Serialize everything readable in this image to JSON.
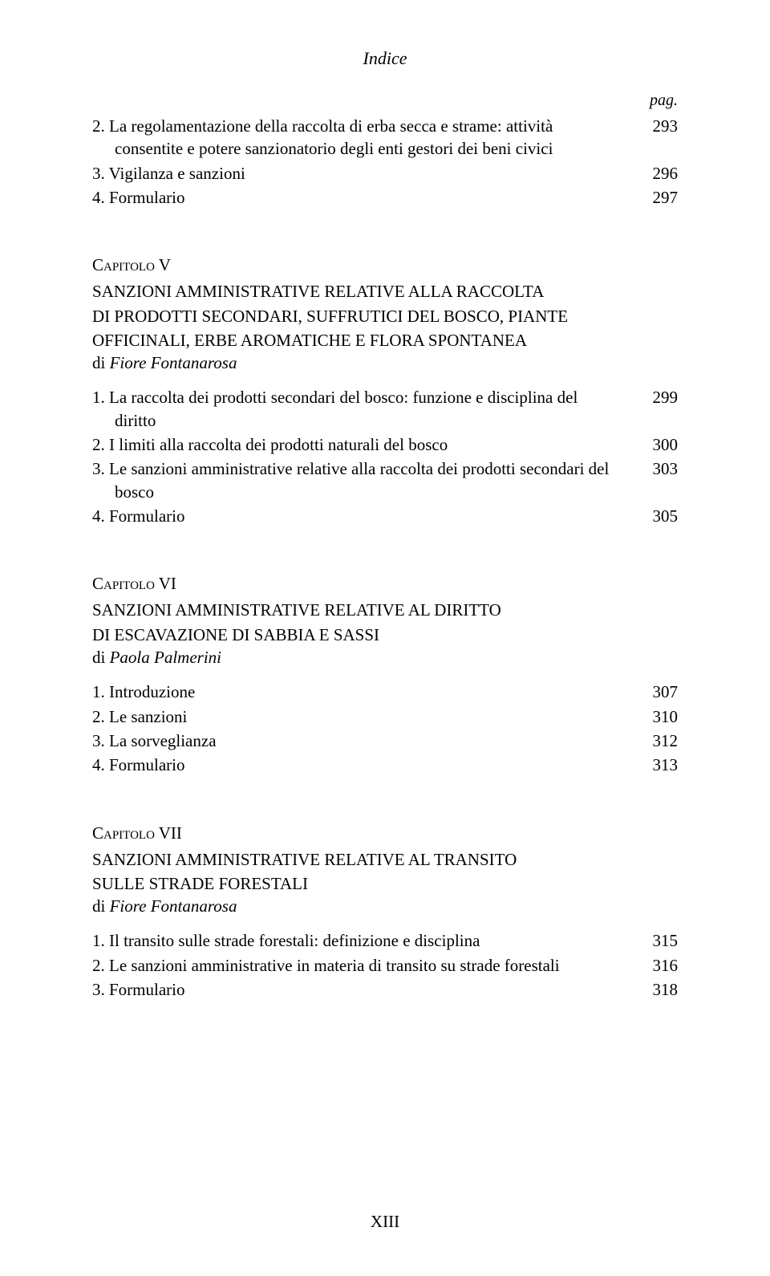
{
  "header": {
    "title": "Indice",
    "pagLabel": "pag."
  },
  "topRows": [
    {
      "text": "2. La regolamentazione della raccolta di erba secca e strame: attività consentite e potere sanzionatorio degli enti gestori dei beni civici",
      "page": "293"
    },
    {
      "text": "3. Vigilanza e sanzioni",
      "page": "296"
    },
    {
      "text": "4. Formulario",
      "page": "297"
    }
  ],
  "chapters": [
    {
      "label": "Capitolo V",
      "titleLines": [
        "SANZIONI AMMINISTRATIVE RELATIVE ALLA RACCOLTA",
        "DI PRODOTTI SECONDARI, SUFFRUTICI DEL BOSCO, PIANTE",
        "OFFICINALI, ERBE AROMATICHE E FLORA SPONTANEA"
      ],
      "authorPrefix": "di ",
      "author": "Fiore Fontanarosa",
      "rows": [
        {
          "text": "1. La raccolta dei prodotti secondari del bosco: funzione e disciplina del diritto",
          "page": "299"
        },
        {
          "text": "2. I limiti alla raccolta dei prodotti naturali del bosco",
          "page": "300"
        },
        {
          "text": "3. Le sanzioni amministrative relative alla raccolta dei prodotti secondari del bosco",
          "page": "303"
        },
        {
          "text": "4. Formulario",
          "page": "305"
        }
      ]
    },
    {
      "label": "Capitolo VI",
      "titleLines": [
        "SANZIONI AMMINISTRATIVE RELATIVE AL DIRITTO",
        "DI ESCAVAZIONE DI SABBIA E SASSI"
      ],
      "authorPrefix": "di ",
      "author": "Paola Palmerini",
      "rows": [
        {
          "text": "1. Introduzione",
          "page": "307"
        },
        {
          "text": "2. Le sanzioni",
          "page": "310"
        },
        {
          "text": "3. La sorveglianza",
          "page": "312"
        },
        {
          "text": "4. Formulario",
          "page": "313"
        }
      ]
    },
    {
      "label": "Capitolo VII",
      "titleLines": [
        "SANZIONI AMMINISTRATIVE RELATIVE AL TRANSITO",
        "SULLE STRADE FORESTALI"
      ],
      "authorPrefix": "di ",
      "author": "Fiore Fontanarosa",
      "rows": [
        {
          "text": "1. Il transito sulle strade forestali: definizione e disciplina",
          "page": "315"
        },
        {
          "text": "2. Le sanzioni amministrative in materia di transito su strade forestali",
          "page": "316"
        },
        {
          "text": "3. Formulario",
          "page": "318"
        }
      ]
    }
  ],
  "pageNumber": "XIII"
}
